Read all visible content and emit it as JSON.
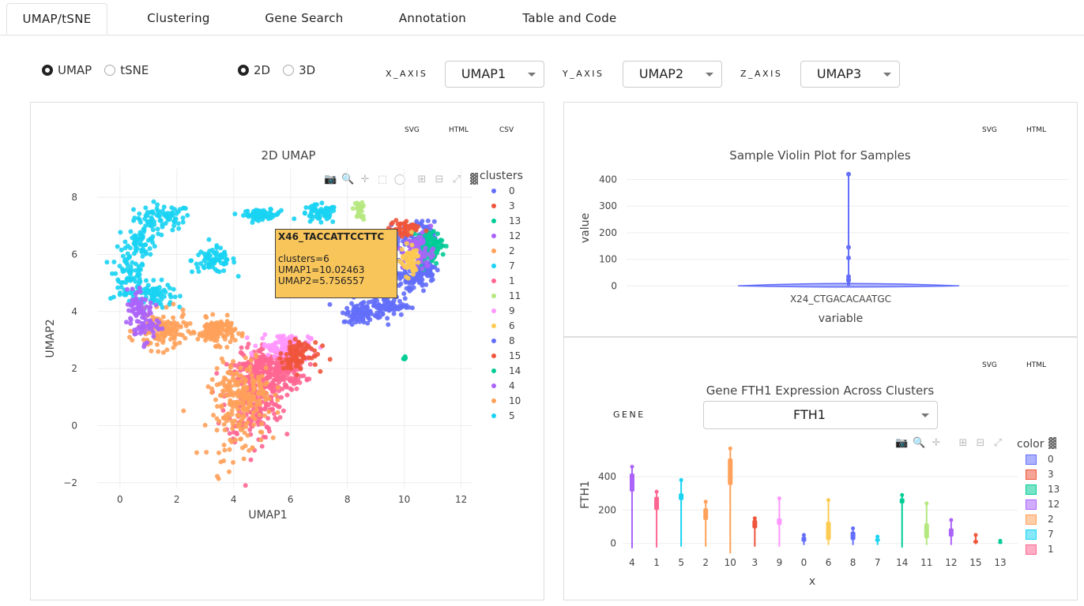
{
  "tabs": [
    {
      "label": "UMAP/tSNE"
    },
    {
      "label": "Clustering"
    },
    {
      "label": "Gene Search"
    },
    {
      "label": "Annotation"
    },
    {
      "label": "Table and Code"
    }
  ],
  "controls": {
    "reduction": {
      "options": [
        "UMAP",
        "tSNE"
      ],
      "selected": "UMAP"
    },
    "dims": {
      "options": [
        "2D",
        "3D"
      ],
      "selected": "2D"
    },
    "x_axis": {
      "label": "X_AXIS",
      "value": "UMAP1"
    },
    "y_axis": {
      "label": "Y_AXIS",
      "value": "UMAP2"
    },
    "z_axis": {
      "label": "Z_AXIS",
      "value": "UMAP3"
    }
  },
  "umap_panel": {
    "downloads": [
      "SVG",
      "HTML",
      "CSV"
    ],
    "title": "2D UMAP",
    "legend_title": "clusters",
    "tooltip": {
      "header": "X46_TACCATTCCTTC",
      "lines": [
        "clusters=6",
        "UMAP1=10.02463",
        "UMAP2=5.756557"
      ]
    }
  },
  "violin_panel": {
    "downloads": [
      "SVG",
      "HTML"
    ],
    "title": "Sample Violin Plot for Samples"
  },
  "gene_panel": {
    "downloads": [
      "SVG",
      "HTML"
    ],
    "title": "Gene FTH1 Expression Across Clusters",
    "gene_label": "GENE",
    "gene_value": "FTH1",
    "legend_title": "color"
  },
  "colors": {
    "0": "#636efa",
    "3": "#EF553B",
    "13": "#00cc96",
    "12": "#ab63fa",
    "2": "#FFA15A",
    "7": "#19d3f3",
    "1": "#FF6692",
    "11": "#B6E880",
    "9": "#FF97FF",
    "6": "#FECB52",
    "8": "#636efa",
    "15": "#EF553B",
    "14": "#00cc96",
    "4": "#ab63fa",
    "10": "#FFA15A",
    "5": "#19d3f3"
  },
  "chart_data": [
    {
      "type": "scatter",
      "title": "2D UMAP",
      "xlabel": "UMAP1",
      "ylabel": "UMAP2",
      "xlim": [
        -0.8,
        12.4
      ],
      "ylim": [
        -2.2,
        9
      ],
      "xticks": [
        0,
        2,
        4,
        6,
        8,
        10,
        12
      ],
      "yticks": [
        -2,
        0,
        2,
        4,
        6,
        8
      ],
      "legend_title": "clusters",
      "legend": [
        "0",
        "3",
        "13",
        "12",
        "2",
        "7",
        "1",
        "11",
        "9",
        "6",
        "8",
        "15",
        "14",
        "4",
        "10",
        "5"
      ],
      "series": [
        {
          "name": "5",
          "regions": [
            [
              1.5,
              7.3,
              0.9,
              0.4
            ],
            [
              0.3,
              5.2,
              0.6,
              0.9
            ],
            [
              1.2,
              4.6,
              0.6,
              0.4
            ],
            [
              5.0,
              7.4,
              0.6,
              0.15
            ],
            [
              3.3,
              5.8,
              0.7,
              0.4
            ]
          ],
          "count": 380
        },
        {
          "name": "7",
          "regions": [
            [
              7.0,
              7.4,
              0.6,
              0.3
            ],
            [
              0.8,
              6.5,
              0.5,
              0.5
            ]
          ],
          "count": 120
        },
        {
          "name": "1",
          "regions": [
            [
              4.7,
              1.0,
              0.9,
              1.4
            ],
            [
              5.4,
              2.0,
              1.0,
              0.7
            ]
          ],
          "count": 520
        },
        {
          "name": "10",
          "regions": [
            [
              4.1,
              0.4,
              0.9,
              1.4
            ],
            [
              3.4,
              3.3,
              0.6,
              0.4
            ],
            [
              1.5,
              3.3,
              0.8,
              0.6
            ]
          ],
          "count": 380
        },
        {
          "name": "9",
          "regions": [
            [
              5.8,
              2.8,
              0.8,
              0.4
            ]
          ],
          "count": 110
        },
        {
          "name": "0",
          "regions": [
            [
              10.4,
              6.6,
              0.6,
              0.5
            ],
            [
              9.3,
              4.2,
              0.8,
              0.3
            ],
            [
              10.7,
              5.5,
              0.4,
              0.4
            ]
          ],
          "count": 270
        },
        {
          "name": "8",
          "regions": [
            [
              8.5,
              3.9,
              0.6,
              0.3
            ],
            [
              10.2,
              5.2,
              0.5,
              0.5
            ]
          ],
          "count": 150
        },
        {
          "name": "13",
          "regions": [
            [
              10.9,
              6.3,
              0.4,
              0.5
            ]
          ],
          "count": 80
        },
        {
          "name": "12",
          "regions": [
            [
              10.5,
              6.1,
              0.5,
              0.6
            ],
            [
              0.8,
              3.6,
              0.5,
              0.6
            ]
          ],
          "count": 120
        },
        {
          "name": "3",
          "regions": [
            [
              10.0,
              6.9,
              0.5,
              0.3
            ],
            [
              6.3,
              2.6,
              0.6,
              0.5
            ]
          ],
          "count": 100
        },
        {
          "name": "6",
          "regions": [
            [
              10.2,
              5.8,
              0.3,
              0.5
            ]
          ],
          "count": 60
        },
        {
          "name": "11",
          "regions": [
            [
              8.4,
              7.5,
              0.2,
              0.3
            ]
          ],
          "count": 25
        },
        {
          "name": "2",
          "regions": [
            [
              4.5,
              1.3,
              0.8,
              0.9
            ]
          ],
          "count": 120
        },
        {
          "name": "14",
          "regions": [
            [
              10.0,
              2.35,
              0.05,
              0.08
            ]
          ],
          "count": 6
        },
        {
          "name": "4",
          "regions": [
            [
              0.7,
              4.3,
              0.4,
              0.5
            ]
          ],
          "count": 40
        },
        {
          "name": "15",
          "regions": [
            [
              6.1,
              2.3,
              0.4,
              0.3
            ]
          ],
          "count": 30
        }
      ]
    },
    {
      "type": "violin",
      "title": "Sample Violin Plot for Samples",
      "xlabel": "variable",
      "ylabel": "value",
      "categories": [
        "X24_CTGACACAATGC"
      ],
      "ylim": [
        -20,
        440
      ],
      "yticks": [
        0,
        100,
        200,
        300,
        400
      ],
      "outliers": [
        420,
        145,
        105,
        35,
        25,
        20
      ],
      "max": 420,
      "color": "#636efa"
    },
    {
      "type": "violin",
      "title": "Gene FTH1 Expression Across Clusters",
      "xlabel": "x",
      "ylabel": "FTH1",
      "ylim": [
        -40,
        600
      ],
      "yticks": [
        0,
        200,
        400
      ],
      "legend_title": "color",
      "legend": [
        "0",
        "3",
        "13",
        "12",
        "2",
        "7",
        "1"
      ],
      "categories": [
        "4",
        "1",
        "5",
        "2",
        "10",
        "3",
        "9",
        "0",
        "6",
        "8",
        "7",
        "14",
        "11",
        "12",
        "15",
        "13"
      ],
      "series": [
        {
          "name": "4",
          "min": -30,
          "max": 460,
          "q1": 310,
          "q3": 420
        },
        {
          "name": "1",
          "min": -25,
          "max": 310,
          "q1": 200,
          "q3": 280
        },
        {
          "name": "5",
          "min": -20,
          "max": 380,
          "q1": 260,
          "q3": 300
        },
        {
          "name": "2",
          "min": -20,
          "max": 250,
          "q1": 140,
          "q3": 210
        },
        {
          "name": "10",
          "min": -60,
          "max": 570,
          "q1": 350,
          "q3": 510
        },
        {
          "name": "3",
          "min": -20,
          "max": 150,
          "q1": 90,
          "q3": 140
        },
        {
          "name": "9",
          "min": -20,
          "max": 270,
          "q1": 110,
          "q3": 150
        },
        {
          "name": "0",
          "min": -10,
          "max": 50,
          "q1": 10,
          "q3": 40
        },
        {
          "name": "6",
          "min": -10,
          "max": 260,
          "q1": 20,
          "q3": 130
        },
        {
          "name": "8",
          "min": -10,
          "max": 90,
          "q1": 20,
          "q3": 70
        },
        {
          "name": "7",
          "min": -10,
          "max": 40,
          "q1": 10,
          "q3": 30
        },
        {
          "name": "14",
          "min": -25,
          "max": 290,
          "q1": 240,
          "q3": 270
        },
        {
          "name": "11",
          "min": -10,
          "max": 240,
          "q1": 30,
          "q3": 120
        },
        {
          "name": "12",
          "min": -10,
          "max": 140,
          "q1": 40,
          "q3": 90
        },
        {
          "name": "15",
          "min": -5,
          "max": 50,
          "q1": 0,
          "q3": 20
        },
        {
          "name": "13",
          "min": -5,
          "max": 15,
          "q1": 0,
          "q3": 8
        }
      ]
    }
  ]
}
